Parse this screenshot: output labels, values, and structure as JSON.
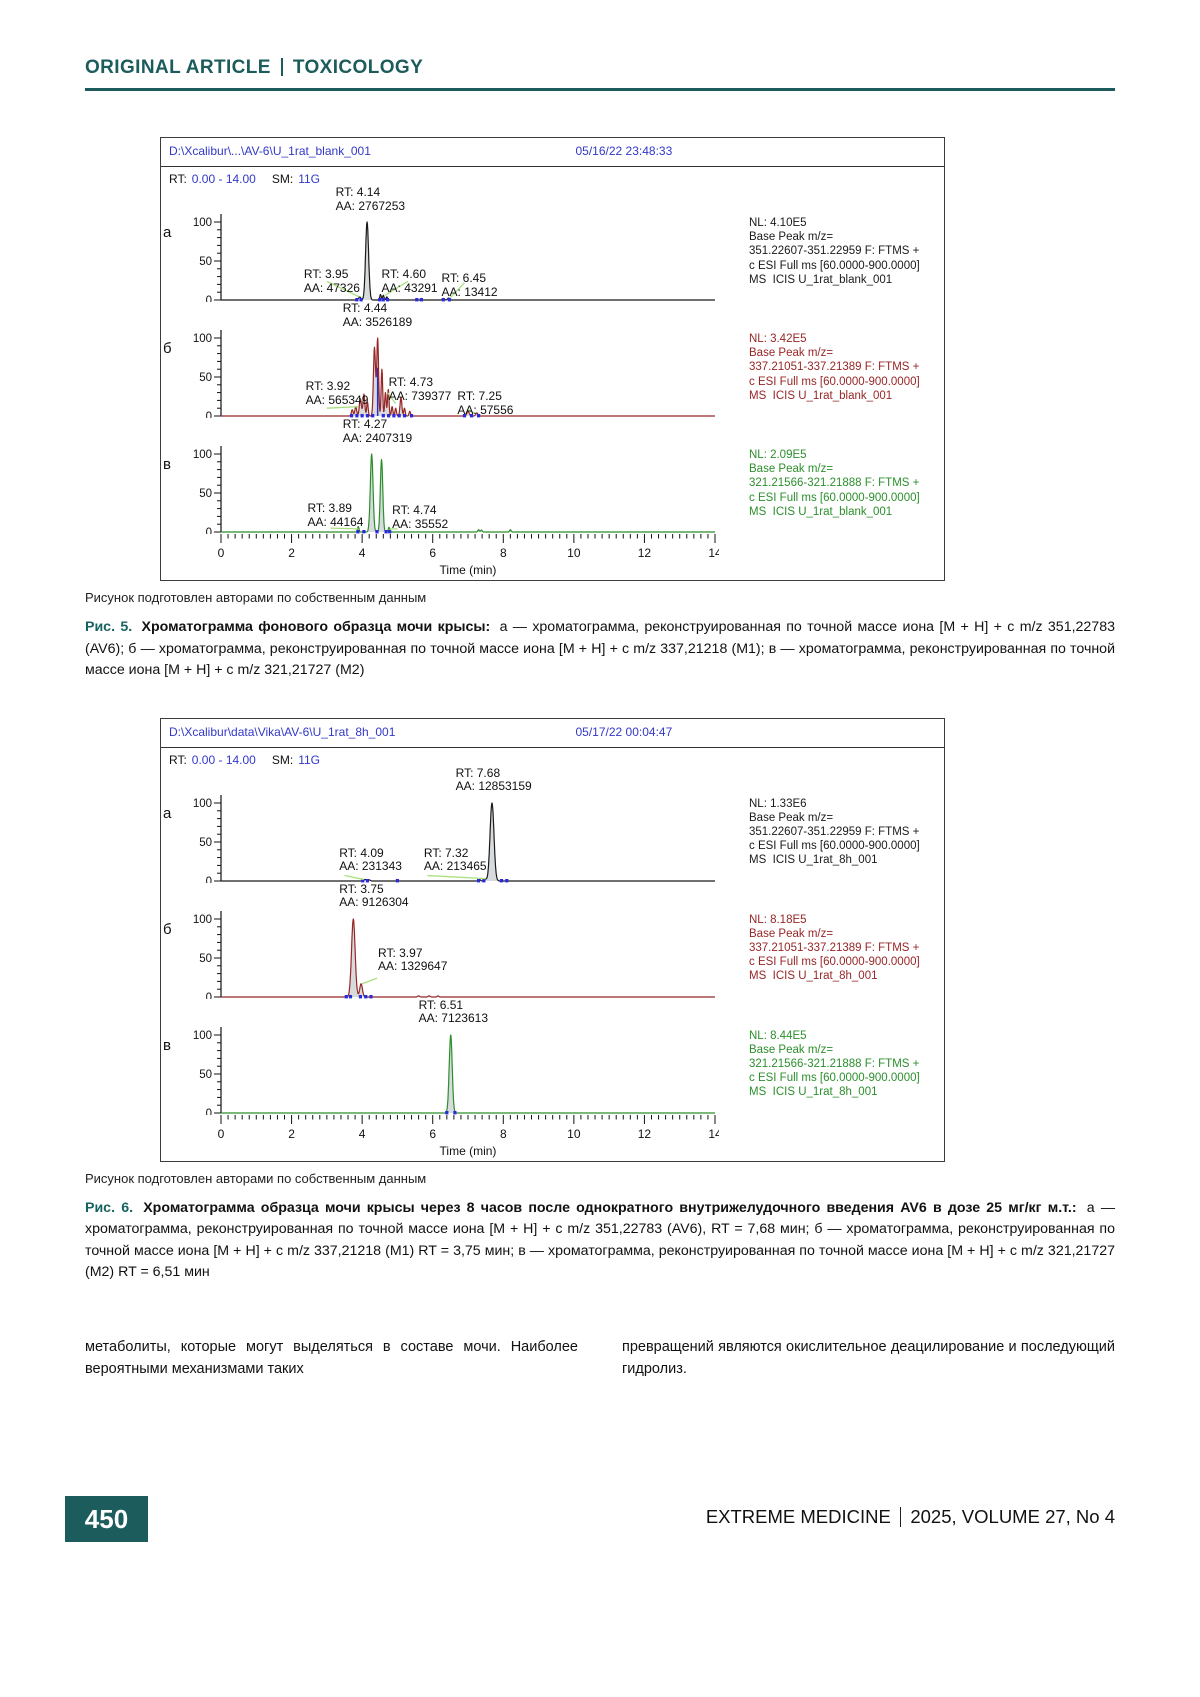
{
  "header": {
    "kicker": "ORIGINAL ARTICLE",
    "section": "TOXICOLOGY"
  },
  "colors": {
    "teal": "#1d5c5c",
    "blue": "#3238c8",
    "black": "#1a1a1a",
    "dark_red": "#982626",
    "green": "#2c8f2c",
    "marker_blue": "#2b2bdc",
    "leader_green": "#a8e080",
    "peak_fill": "#d8dbdd"
  },
  "figure5": {
    "file_path": "D:\\Xcalibur\\...\\AV-6\\U_1rat_blank_001",
    "datetime": "05/16/22 23:48:33",
    "rt_label": "RT:",
    "rt_range": "0.00 - 14.00",
    "sm_label": "SM:",
    "sm_value": "11G",
    "note": "Рисунок подготовлен авторами по собственным данным",
    "caption_label": "Рис. 5.",
    "caption_bold": "Хроматограмма фонового образца мочи крысы:",
    "caption_text": "а — хроматограмма, реконструированная по точной массе иона [M + H] + с m/z 351,22783 (AV6); б — хроматограмма, реконструированная по точной массе иона [M + H] + с m/z 337,21218 (M1); в — хроматограмма, реконструированная по точной массе иона [M + H] + с m/z 321,21727 (M2)"
  },
  "figure6": {
    "file_path": "D:\\Xcalibur\\data\\Vika\\AV-6\\U_1rat_8h_001",
    "datetime": "05/17/22 00:04:47",
    "rt_label": "RT:",
    "rt_range": "0.00 - 14.00",
    "sm_label": "SM:",
    "sm_value": "11G",
    "note": "Рисунок подготовлен авторами по собственным данным",
    "caption_label": "Рис. 6.",
    "caption_bold": "Хроматограмма образца мочи крысы через 8 часов после однократного внутрижелудочного введения AV6 в дозе 25 мг/кг м.т.:",
    "caption_text": "а — хроматограмма, реконструированная по точной массе иона [M + H] + с m/z 351,22783 (AV6), RT = 7,68 мин; б — хроматограмма, реконструированная по точной массе иона [M + H] + с m/z 337,21218 (M1) RT = 3,75 мин; в — хроматограмма, реконструированная по точной массе иона [M + H] + с m/z 321,21727 (M2) RT = 6,51 мин"
  },
  "body_text": {
    "col1": "метаболиты, которые могут выделяться в составе мочи. Наиболее вероятными механизмами таких",
    "col2": "превращений являются окислительное деацилирование и последующий гидролиз."
  },
  "footer": {
    "page_number": "450",
    "journal_name": "EXTREME MEDICINE",
    "journal_issue": "2025, VOLUME 27, No 4"
  },
  "chart_data": [
    {
      "type": "line",
      "mount": "fig5",
      "xlabel": "Time (min)",
      "x_ticks": [
        0,
        2,
        4,
        6,
        8,
        10,
        12,
        14
      ],
      "xlim": [
        0,
        14
      ],
      "y_ticks": [
        100,
        50,
        0
      ],
      "ylim": [
        0,
        100
      ],
      "panels": [
        {
          "letter": "а",
          "color_key": "black",
          "nl": [
            "NL: 4.10E5",
            "Base Peak m/z=",
            "351.22607-351.22959 F: FTMS +",
            "c ESI Full ms [60.0000-900.0000]",
            "MS  ICIS U_1rat_blank_001"
          ],
          "peaks": [
            {
              "rt": 4.14,
              "h": 100,
              "w": 0.1
            },
            {
              "rt": 3.93,
              "h": 4,
              "w": 0.07
            },
            {
              "rt": 4.52,
              "h": 7,
              "w": 0.05
            },
            {
              "rt": 4.6,
              "h": 6,
              "w": 0.05
            },
            {
              "rt": 4.7,
              "h": 4,
              "w": 0.05
            },
            {
              "rt": 6.3,
              "h": 2,
              "w": 0.06
            },
            {
              "rt": 6.45,
              "h": 2.5,
              "w": 0.07
            }
          ],
          "markers": [
            3.85,
            3.97,
            4.5,
            4.6,
            4.72,
            5.55,
            5.68,
            6.3,
            6.47
          ],
          "vlines": [],
          "leaders": [
            [
              3.0,
              24,
              3.92,
              4
            ],
            [
              5.3,
              24,
              4.65,
              6
            ],
            [
              6.9,
              22,
              6.5,
              3
            ]
          ],
          "annotations": [
            {
              "lines": [
                "RT: 4.14",
                "AA: 2767253"
              ],
              "x": 3.25,
              "top": 0
            },
            {
              "lines": [
                "RT: 3.95",
                "AA: 47326"
              ],
              "x": 2.35,
              "top": 82
            },
            {
              "lines": [
                "RT: 4.60",
                "AA: 43291"
              ],
              "x": 4.55,
              "top": 82
            },
            {
              "lines": [
                "RT: 6.45",
                "AA: 13412"
              ],
              "x": 6.25,
              "top": 86
            }
          ]
        },
        {
          "letter": "б",
          "color_key": "dark_red",
          "nl": [
            "NL: 3.42E5",
            "Base Peak m/z=",
            "337.21051-337.21389 F: FTMS +",
            "c ESI Full ms [60.0000-900.0000]",
            "MS  ICIS U_1rat_blank_001"
          ],
          "peaks": [
            {
              "rt": 3.72,
              "h": 8,
              "w": 0.06
            },
            {
              "rt": 3.82,
              "h": 12,
              "w": 0.06
            },
            {
              "rt": 3.95,
              "h": 22,
              "w": 0.07
            },
            {
              "rt": 4.05,
              "h": 28,
              "w": 0.06
            },
            {
              "rt": 4.15,
              "h": 18,
              "w": 0.05
            },
            {
              "rt": 4.35,
              "h": 88,
              "w": 0.07
            },
            {
              "rt": 4.44,
              "h": 100,
              "w": 0.06
            },
            {
              "rt": 4.56,
              "h": 60,
              "w": 0.05
            },
            {
              "rt": 4.66,
              "h": 30,
              "w": 0.05
            },
            {
              "rt": 4.74,
              "h": 34,
              "w": 0.05
            },
            {
              "rt": 4.85,
              "h": 12,
              "w": 0.05
            },
            {
              "rt": 4.95,
              "h": 10,
              "w": 0.05
            },
            {
              "rt": 5.1,
              "h": 24,
              "w": 0.06
            },
            {
              "rt": 5.2,
              "h": 10,
              "w": 0.05
            },
            {
              "rt": 5.35,
              "h": 6,
              "w": 0.05
            },
            {
              "rt": 7.0,
              "h": 6,
              "w": 0.08
            },
            {
              "rt": 7.25,
              "h": 4,
              "w": 0.07
            }
          ],
          "markers": [
            3.7,
            3.85,
            4.0,
            4.15,
            4.3,
            4.6,
            4.75,
            4.9,
            5.05,
            5.2,
            5.4,
            6.9,
            7.1,
            7.3
          ],
          "vlines": [
            {
              "rt": 4.44,
              "h": 62
            }
          ],
          "leaders": [
            [
              3.0,
              10,
              3.9,
              12
            ],
            [
              4.95,
              16,
              4.72,
              30
            ],
            [
              7.0,
              8,
              7.22,
              3
            ]
          ],
          "annotations": [
            {
              "lines": [
                "RT: 4.44",
                "AA: 3526189"
              ],
              "x": 3.45,
              "top": 0
            },
            {
              "lines": [
                "RT: 3.92",
                "AA: 565349"
              ],
              "x": 2.4,
              "top": 78
            },
            {
              "lines": [
                "RT: 4.73",
                "AA: 739377"
              ],
              "x": 4.75,
              "top": 74
            },
            {
              "lines": [
                "RT: 7.25",
                "AA: 57556"
              ],
              "x": 6.7,
              "top": 88
            }
          ]
        },
        {
          "letter": "в",
          "color_key": "green",
          "nl": [
            "NL: 2.09E5",
            "Base Peak m/z=",
            "321.21566-321.21888 F: FTMS +",
            "c ESI Full ms [60.0000-900.0000]",
            "MS  ICIS U_1rat_blank_001"
          ],
          "peaks": [
            {
              "rt": 4.27,
              "h": 100,
              "w": 0.09
            },
            {
              "rt": 4.55,
              "h": 93,
              "w": 0.08
            },
            {
              "rt": 3.89,
              "h": 7,
              "w": 0.05
            },
            {
              "rt": 4.76,
              "h": 6,
              "w": 0.05
            },
            {
              "rt": 7.3,
              "h": 3,
              "w": 0.05
            },
            {
              "rt": 7.38,
              "h": 2.5,
              "w": 0.05
            },
            {
              "rt": 8.2,
              "h": 3,
              "w": 0.05
            }
          ],
          "markers": [
            3.88,
            4.05,
            4.42,
            4.68,
            4.78
          ],
          "vlines": [],
          "leaders": [
            [
              3.1,
              5,
              3.88,
              4
            ],
            [
              5.0,
              4,
              4.78,
              4
            ]
          ],
          "annotations": [
            {
              "lines": [
                "RT: 4.27",
                "AA: 2407319"
              ],
              "x": 3.45,
              "top": 0
            },
            {
              "lines": [
                "RT: 3.89",
                "AA: 44164"
              ],
              "x": 2.45,
              "top": 84
            },
            {
              "lines": [
                "RT: 4.74",
                "AA: 35552"
              ],
              "x": 4.85,
              "top": 86
            }
          ]
        }
      ]
    },
    {
      "type": "line",
      "mount": "fig6",
      "xlabel": "Time (min)",
      "x_ticks": [
        0,
        2,
        4,
        6,
        8,
        10,
        12,
        14
      ],
      "xlim": [
        0,
        14
      ],
      "y_ticks": [
        100,
        50,
        0
      ],
      "ylim": [
        0,
        100
      ],
      "panels": [
        {
          "letter": "а",
          "color_key": "black",
          "nl": [
            "NL: 1.33E6",
            "Base Peak m/z=",
            "351.22607-351.22959 F: FTMS +",
            "c ESI Full ms [60.0000-900.0000]",
            "MS  ICIS U_1rat_8h_001"
          ],
          "peaks": [
            {
              "rt": 7.68,
              "h": 100,
              "w": 0.13
            },
            {
              "rt": 4.09,
              "h": 2,
              "w": 0.1
            },
            {
              "rt": 4.2,
              "h": 1.5,
              "w": 0.07
            },
            {
              "rt": 7.32,
              "h": 2,
              "w": 0.08
            },
            {
              "rt": 7.5,
              "h": 2,
              "w": 0.06
            }
          ],
          "markers": [
            4.02,
            4.15,
            5.0,
            7.3,
            7.45,
            7.95,
            8.1
          ],
          "vlines": [],
          "leaders": [
            [
              3.5,
              7,
              4.05,
              2
            ],
            [
              5.85,
              7,
              7.5,
              3
            ]
          ],
          "annotations": [
            {
              "lines": [
                "RT: 7.68",
                "AA: 12853159"
              ],
              "x": 6.65,
              "top": 0
            },
            {
              "lines": [
                "RT: 4.09",
                "AA: 231343"
              ],
              "x": 3.35,
              "top": 80
            },
            {
              "lines": [
                "RT: 7.32",
                "AA: 213465"
              ],
              "x": 5.75,
              "top": 80
            }
          ]
        },
        {
          "letter": "б",
          "color_key": "dark_red",
          "nl": [
            "NL: 8.18E5",
            "Base Peak m/z=",
            "337.21051-337.21389 F: FTMS +",
            "c ESI Full ms [60.0000-900.0000]",
            "MS  ICIS U_1rat_8h_001"
          ],
          "peaks": [
            {
              "rt": 3.75,
              "h": 100,
              "w": 0.12
            },
            {
              "rt": 3.97,
              "h": 17,
              "w": 0.09
            },
            {
              "rt": 5.6,
              "h": 1.5,
              "w": 0.06
            },
            {
              "rt": 5.9,
              "h": 1.5,
              "w": 0.06
            },
            {
              "rt": 6.15,
              "h": 1.5,
              "w": 0.05
            }
          ],
          "markers": [
            3.55,
            3.67,
            3.95,
            4.1,
            4.25
          ],
          "vlines": [],
          "leaders": [
            [
              4.42,
              24,
              4.0,
              17
            ]
          ],
          "annotations": [
            {
              "lines": [
                "RT: 3.75",
                "AA: 9126304"
              ],
              "x": 3.35,
              "top": 0
            },
            {
              "lines": [
                "RT: 3.97",
                "AA: 1329647"
              ],
              "x": 4.45,
              "top": 64
            }
          ]
        },
        {
          "letter": "в",
          "color_key": "green",
          "nl": [
            "NL: 8.44E5",
            "Base Peak m/z=",
            "321.21566-321.21888 F: FTMS +",
            "c ESI Full ms [60.0000-900.0000]",
            "MS  ICIS U_1rat_8h_001"
          ],
          "peaks": [
            {
              "rt": 6.51,
              "h": 100,
              "w": 0.1
            }
          ],
          "markers": [
            6.4,
            6.63
          ],
          "vlines": [],
          "leaders": [],
          "annotations": [
            {
              "lines": [
                "RT: 6.51",
                "AA: 7123613"
              ],
              "x": 5.6,
              "top": 0
            }
          ]
        }
      ]
    }
  ]
}
